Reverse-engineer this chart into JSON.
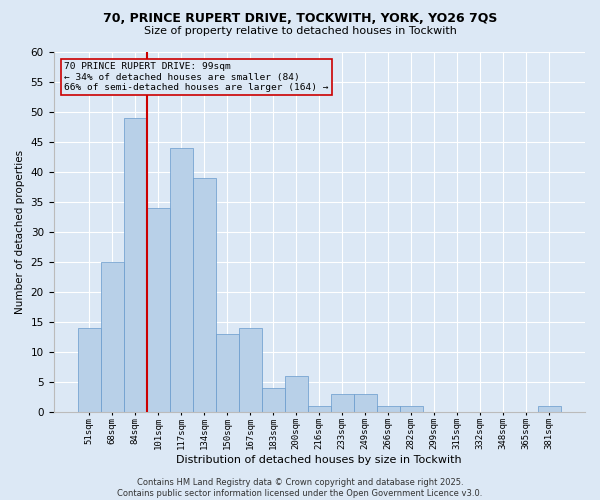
{
  "title_line1": "70, PRINCE RUPERT DRIVE, TOCKWITH, YORK, YO26 7QS",
  "title_line2": "Size of property relative to detached houses in Tockwith",
  "xlabel": "Distribution of detached houses by size in Tockwith",
  "ylabel": "Number of detached properties",
  "categories": [
    "51sqm",
    "68sqm",
    "84sqm",
    "101sqm",
    "117sqm",
    "134sqm",
    "150sqm",
    "167sqm",
    "183sqm",
    "200sqm",
    "216sqm",
    "233sqm",
    "249sqm",
    "266sqm",
    "282sqm",
    "299sqm",
    "315sqm",
    "332sqm",
    "348sqm",
    "365sqm",
    "381sqm"
  ],
  "values": [
    14,
    25,
    49,
    34,
    44,
    39,
    13,
    14,
    4,
    6,
    1,
    3,
    3,
    1,
    1,
    0,
    0,
    0,
    0,
    0,
    1
  ],
  "bar_color": "#b8d0e8",
  "bar_edge_color": "#6699cc",
  "background_color": "#dce8f5",
  "grid_color": "#ffffff",
  "vline_color": "#cc0000",
  "annotation_text": "70 PRINCE RUPERT DRIVE: 99sqm\n← 34% of detached houses are smaller (84)\n66% of semi-detached houses are larger (164) →",
  "annotation_box_color": "#cc0000",
  "footer_text": "Contains HM Land Registry data © Crown copyright and database right 2025.\nContains public sector information licensed under the Open Government Licence v3.0.",
  "ylim": [
    0,
    60
  ],
  "yticks": [
    0,
    5,
    10,
    15,
    20,
    25,
    30,
    35,
    40,
    45,
    50,
    55,
    60
  ]
}
